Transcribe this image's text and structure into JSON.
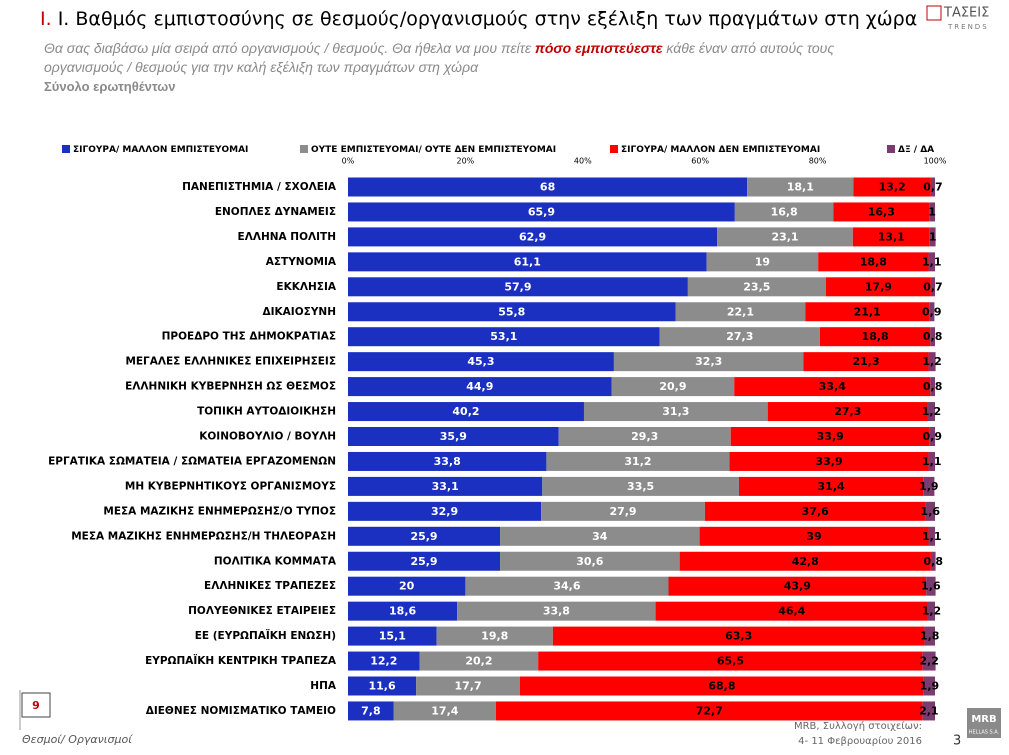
{
  "chart_data": {
    "type": "stacked_barh",
    "title": "Ι. Βαθμός εμπιστοσύνης σε θεσμούς/οργανισμούς στην εξέλιξη των πραγμάτων στη χώρα",
    "subtitle": [
      "Θα σας διαβάσω μία σειρά από οργανισμούς / θεσμούς. Θα ήθελα να μου πείτε",
      "πόσο εμπιστεύεστε",
      "κάθε έναν από αυτούς τους οργανισμούς / θεσμούς για την καλή εξέλιξη των πραγμάτων στη χώρα"
    ],
    "note": "Σύνολο ερωτηθέντων",
    "categories": [
      "ΠΑΝΕΠΙΣΤΗΜΙΑ / ΣΧΟΛΕΙΑ",
      "ΕΝΟΠΛΕΣ ΔΥΝΑΜΕΙΣ",
      "ΕΛΛΗΝΑ ΠΟΛΙΤΗ",
      "ΑΣΤΥΝΟΜΙΑ",
      "ΕΚΚΛΗΣΙΑ",
      "ΔΙΚΑΙΟΣΥΝΗ",
      "ΠΡΟΕΔΡΟ ΤΗΣ ΔΗΜΟΚΡΑΤΙΑΣ",
      "ΜΕΓΑΛΕΣ ΕΛΛΗΝΙΚΕΣ ΕΠΙΧΕΙΡΗΣΕΙΣ",
      "ΕΛΛΗΝΙΚΗ ΚΥΒΕΡΝΗΣΗ ΩΣ ΘΕΣΜΟΣ",
      "ΤΟΠΙΚΗ ΑΥΤΟΔΙΟΙΚΗΣΗ",
      "ΚΟΙΝΟΒΟΥΛΙΟ / ΒΟΥΛΗ",
      "ΕΡΓΑΤΙΚΑ ΣΩΜΑΤΕΙΑ / ΣΩΜΑΤΕΙΑ ΕΡΓΑΖΟΜΕΝΩΝ",
      "ΜΗ ΚΥΒΕΡΝΗΤΙΚΟΥΣ ΟΡΓΑΝΙΣΜΟΥΣ",
      "ΜΕΣΑ ΜΑΖΙΚΗΣ ΕΝΗΜΕΡΩΣΗΣ/Ο ΤΥΠΟΣ",
      "ΜΕΣΑ ΜΑΖΙΚΗΣ ΕΝΗΜΕΡΩΣΗΣ/Η ΤΗΛΕΟΡΑΣΗ",
      "ΠΟΛΙΤΙΚΑ ΚΟΜΜΑΤΑ",
      "ΕΛΛΗΝΙΚΕΣ ΤΡΑΠΕΖΕΣ",
      "ΠΟΛΥΕΘΝΙΚΕΣ ΕΤΑΙΡΕΙΕΣ",
      "ΕΕ (ΕΥΡΩΠΑΪΚΗ ΕΝΩΣΗ)",
      "ΕΥΡΩΠΑΪΚΗ ΚΕΝΤΡΙΚΗ ΤΡΑΠΕΖΑ",
      "ΗΠΑ",
      "ΔΙΕΘΝΕΣ ΝΟΜΙΣΜΑΤΙΚΟ ΤΑΜΕΙΟ"
    ],
    "series": [
      {
        "name": "ΣΙΓΟΥΡΑ/ ΜΑΛΛΟΝ ΕΜΠΙΣΤΕΥΟΜΑΙ",
        "color": "#1b2fc0",
        "label_color": "#ffffff",
        "values": [
          68,
          65.9,
          62.9,
          61.1,
          57.9,
          55.8,
          53.1,
          45.3,
          44.9,
          40.2,
          35.9,
          33.8,
          33.1,
          32.9,
          25.9,
          25.9,
          20,
          18.6,
          15.1,
          12.2,
          11.6,
          7.8
        ],
        "value_labels": [
          "68",
          "65,9",
          "62,9",
          "61,1",
          "57,9",
          "55,8",
          "53,1",
          "45,3",
          "44,9",
          "40,2",
          "35,9",
          "33,8",
          "33,1",
          "32,9",
          "25,9",
          "25,9",
          "20",
          "18,6",
          "15,1",
          "12,2",
          "11,6",
          "7,8"
        ]
      },
      {
        "name": "ΟΥΤΕ ΕΜΠΙΣΤΕΥΟΜΑΙ/ ΟΥΤΕ ΔΕΝ ΕΜΠΙΣΤΕΥΟΜΑΙ",
        "color": "#8c8c8c",
        "label_color": "#ffffff",
        "values": [
          18.1,
          16.8,
          23.1,
          19,
          23.5,
          22.1,
          27.3,
          32.3,
          20.9,
          31.3,
          29.3,
          31.2,
          33.5,
          27.9,
          34,
          30.6,
          34.6,
          33.8,
          19.8,
          20.2,
          17.7,
          17.4
        ],
        "value_labels": [
          "18,1",
          "16,8",
          "23,1",
          "19",
          "23,5",
          "22,1",
          "27,3",
          "32,3",
          "20,9",
          "31,3",
          "29,3",
          "31,2",
          "33,5",
          "27,9",
          "34",
          "30,6",
          "34,6",
          "33,8",
          "19,8",
          "20,2",
          "17,7",
          "17,4"
        ]
      },
      {
        "name": "ΣΙΓΟΥΡΑ/ ΜΑΛΛΟΝ ΔΕΝ ΕΜΠΙΣΤΕΥΟΜΑΙ",
        "color": "#ff0000",
        "label_color": "#000000",
        "values": [
          13.2,
          16.3,
          13.1,
          18.8,
          17.9,
          21.1,
          18.8,
          21.3,
          33.4,
          27.3,
          33.9,
          33.9,
          31.4,
          37.6,
          39,
          42.8,
          43.9,
          46.4,
          63.3,
          65.5,
          68.8,
          72.7
        ],
        "value_labels": [
          "13,2",
          "16,3",
          "13,1",
          "18,8",
          "17,9",
          "21,1",
          "18,8",
          "21,3",
          "33,4",
          "27,3",
          "33,9",
          "33,9",
          "31,4",
          "37,6",
          "39",
          "42,8",
          "43,9",
          "46,4",
          "63,3",
          "65,5",
          "68,8",
          "72,7"
        ]
      },
      {
        "name": "ΔΞ / ΔΑ",
        "color": "#7b3b6e",
        "label_color": "#000000",
        "values": [
          0.7,
          1,
          1,
          1.1,
          0.7,
          0.9,
          0.8,
          1.2,
          0.8,
          1.2,
          0.9,
          1.1,
          1.9,
          1.6,
          1.1,
          0.8,
          1.6,
          1.2,
          1.8,
          2.2,
          1.9,
          2.1
        ],
        "value_labels": [
          "0,7",
          "1",
          "1",
          "1,1",
          "0,7",
          "0,9",
          "0,8",
          "1,2",
          "0,8",
          "1,2",
          "0,9",
          "1,1",
          "1,9",
          "1,6",
          "1,1",
          "0,8",
          "1,6",
          "1,2",
          "1,8",
          "2,2",
          "1,9",
          "2,1"
        ]
      }
    ],
    "xlim": [
      0,
      100
    ],
    "xticks": [
      {
        "value": 0,
        "label": "0%"
      },
      {
        "value": 20,
        "label": "20%"
      },
      {
        "value": 40,
        "label": "40%"
      },
      {
        "value": 60,
        "label": "60%"
      },
      {
        "value": 80,
        "label": "80%"
      },
      {
        "value": 100,
        "label": "100%"
      }
    ],
    "legend": "top"
  },
  "brand": {
    "name": "ΤΑΣΕΙΣ",
    "sub": "TRENDS"
  },
  "footer": {
    "page_box": "9",
    "section": "Θεσμοί/ Οργανισμοί",
    "source": "MRB, Συλλογή στοιχείων:",
    "dates": "4- 11 Φεβρουαρίου 2016",
    "logo": "MRB",
    "logo_sub": "HELLAS S.A.",
    "page": "3"
  }
}
